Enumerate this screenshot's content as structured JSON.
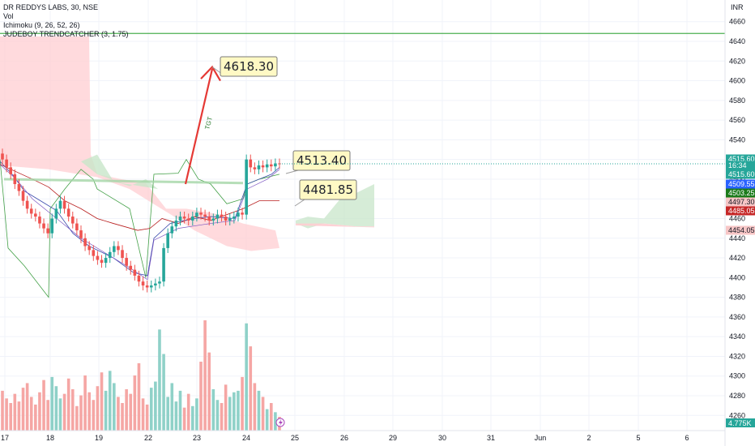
{
  "legend": {
    "symbol": "DR REDDYS LABS, 30, NSE",
    "vol": "Vol",
    "ichimoku": "Ichimoku (9, 26, 52, 26)",
    "trendcatcher": "JUDEBOY TRENDCATCHER (3, 1.75)"
  },
  "currency": "INR",
  "colors": {
    "up": "#26a69a",
    "down": "#ef5350",
    "target_line": "#4caf50",
    "arrow": "#e53935",
    "callout_bg": "#fff9c4",
    "cloud_bull": "#c8e6c9",
    "cloud_bear": "#ffcdd2"
  },
  "chart_data": {
    "type": "candlestick",
    "y_range": [
      4240,
      4680
    ],
    "y_ticks": [
      4660,
      4640,
      4620,
      4600,
      4580,
      4560,
      4540,
      4520,
      4500,
      4480,
      4460,
      4440,
      4420,
      4400,
      4380,
      4360,
      4340,
      4320,
      4300,
      4280,
      4260
    ],
    "x_ticks": [
      "17",
      "18",
      "19",
      "22",
      "23",
      "24",
      "25",
      "26",
      "29",
      "30",
      "31",
      "Jun",
      "2",
      "5",
      "6"
    ],
    "target_level": 4648,
    "callouts": [
      {
        "label": "4618.30",
        "price": 4618.3
      },
      {
        "label": "4513.40",
        "price": 4513.4
      },
      {
        "label": "4481.85",
        "price": 4481.85
      }
    ],
    "arrow_text": "TGT",
    "price_tags": [
      {
        "label": "4515.60",
        "price": 4515.6,
        "color": "#26a69a"
      },
      {
        "label": "16:34",
        "price": 4506.0,
        "color": "#26a69a"
      },
      {
        "label": "4515.60",
        "price": 4499.0,
        "color": "#26a69a"
      },
      {
        "label": "4509.55",
        "price": 4491.0,
        "color": "#2962ff"
      },
      {
        "label": "4503.25",
        "price": 4483.0,
        "color": "#1b7b1b"
      },
      {
        "label": "4497.30",
        "price": 4475.0,
        "color": "#f7c6c6",
        "text": "#131722"
      },
      {
        "label": "4485.05",
        "price": 4467.0,
        "color": "#c62828"
      },
      {
        "label": "4454.05",
        "price": 4452.0,
        "color": "#f7c6c6",
        "text": "#131722"
      }
    ],
    "volume_label": "4.775K",
    "closes": [
      4520,
      4512,
      4505,
      4495,
      4488,
      4478,
      4470,
      4465,
      4462,
      4455,
      4450,
      4445,
      4460,
      4470,
      4478,
      4470,
      4462,
      4455,
      4448,
      4440,
      4432,
      4428,
      4422,
      4418,
      4415,
      4420,
      4426,
      4432,
      4428,
      4420,
      4412,
      4408,
      4402,
      4396,
      4392,
      4390,
      4392,
      4394,
      4396,
      4430,
      4445,
      4452,
      4458,
      4462,
      4460,
      4458,
      4462,
      4466,
      4464,
      4462,
      4458,
      4460,
      4464,
      4462,
      4458,
      4460,
      4462,
      4466,
      4464,
      4520,
      4512,
      4510,
      4514,
      4512,
      4515,
      4513,
      4516,
      4515.6
    ],
    "volumes": [
      2.6,
      2.1,
      1.8,
      2.4,
      1.9,
      2.8,
      3.1,
      2.2,
      1.7,
      2.5,
      3.3,
      2.0,
      3.5,
      2.9,
      2.1,
      2.4,
      3.4,
      2.7,
      1.6,
      2.3,
      3.6,
      2.5,
      2.0,
      2.9,
      3.8,
      2.6,
      3.9,
      3.1,
      2.2,
      1.8,
      2.7,
      2.4,
      3.6,
      4.4,
      2.1,
      1.7,
      2.8,
      3.2,
      6.6,
      5.0,
      2.2,
      3.1,
      1.9,
      2.6,
      1.5,
      2.4,
      1.6,
      2.1,
      4.5,
      7.2,
      5.1,
      2.7,
      2.0,
      1.8,
      3.0,
      2.2,
      2.5,
      2.6,
      3.5,
      7.0,
      5.5,
      3.1,
      2.6,
      2.2,
      1.4,
      1.8,
      1.2,
      0.9
    ]
  }
}
